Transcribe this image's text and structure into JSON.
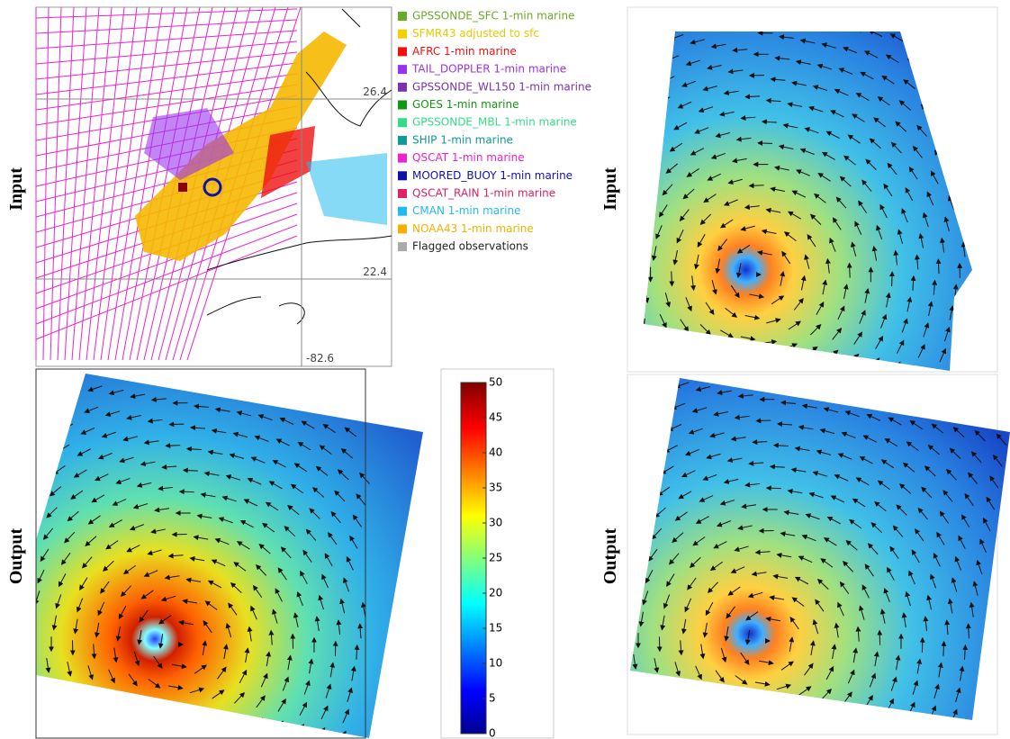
{
  "row_labels": {
    "top_left": "Input",
    "bottom_left": "Output",
    "top_right": "Input",
    "bottom_right": "Output"
  },
  "map_labels": {
    "lat_upper": "26.4",
    "lat_lower": "22.4",
    "lon": "-82.6"
  },
  "legend": [
    {
      "label": "GPSSONDE_SFC 1-min marine",
      "color": "#6aaa2a",
      "text_color": "#6aaa2a"
    },
    {
      "label": "SFMR43 adjusted to sfc",
      "color": "#f5d000",
      "text_color": "#e8c800"
    },
    {
      "label": "AFRC 1-min marine",
      "color": "#ee1111",
      "text_color": "#ee1111"
    },
    {
      "label": "TAIL_DOPPLER 1-min marine",
      "color": "#9933ee",
      "text_color": "#9933ee"
    },
    {
      "label": "GPSSONDE_WL150 1-min marine",
      "color": "#7733aa",
      "text_color": "#7733aa"
    },
    {
      "label": "GOES 1-min marine",
      "color": "#119911",
      "text_color": "#119911"
    },
    {
      "label": "GPSSONDE_MBL 1-min marine",
      "color": "#33dd88",
      "text_color": "#33dd88"
    },
    {
      "label": "SHIP 1-min marine",
      "color": "#119999",
      "text_color": "#119999"
    },
    {
      "label": "QSCAT 1-min marine",
      "color": "#ee22cc",
      "text_color": "#ee22cc"
    },
    {
      "label": "MOORED_BUOY 1-min marine",
      "color": "#1111aa",
      "text_color": "#1111aa"
    },
    {
      "label": "QSCAT_RAIN 1-min marine",
      "color": "#dd2266",
      "text_color": "#dd2266"
    },
    {
      "label": "CMAN 1-min marine",
      "color": "#22bbee",
      "text_color": "#22bbee"
    },
    {
      "label": "NOAA43 1-min marine",
      "color": "#f5b000",
      "text_color": "#f5b000"
    },
    {
      "label": "Flagged observations",
      "color": "#aaaaaa",
      "text_color": "#222222"
    }
  ],
  "colorbar": {
    "lim": [
      0,
      50
    ],
    "ticks": [
      0,
      5,
      10,
      15,
      20,
      25,
      30,
      35,
      40,
      45,
      50
    ]
  }
}
